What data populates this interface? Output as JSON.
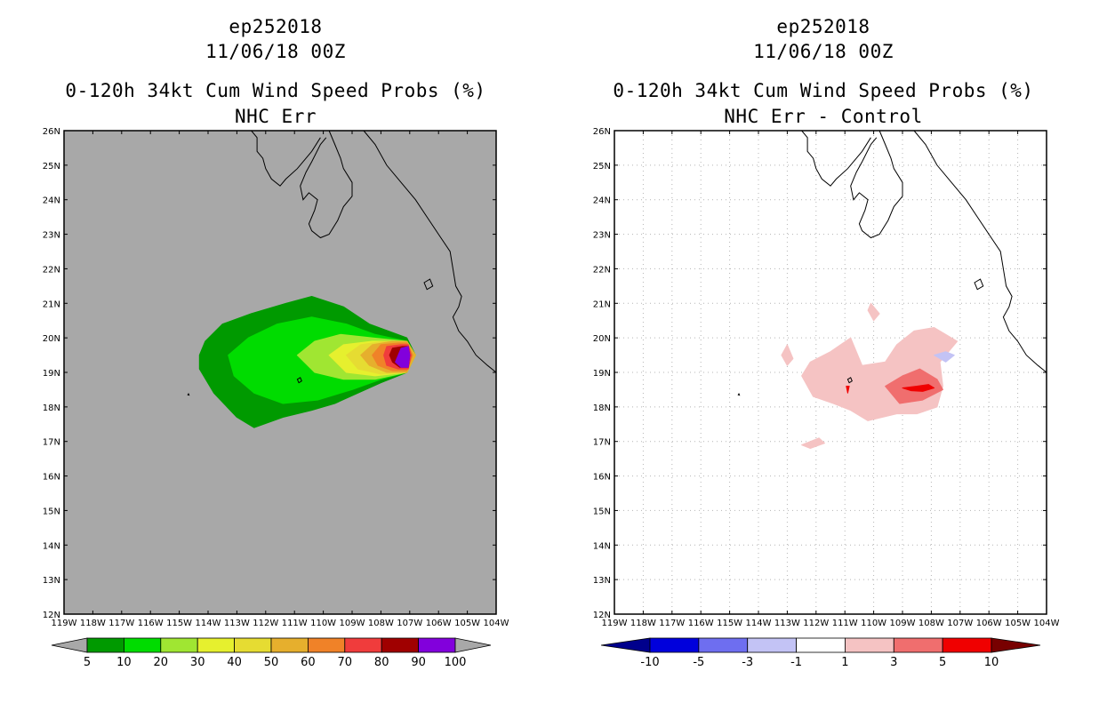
{
  "chart_data": [
    {
      "type": "contour-map",
      "storm_id": "ep252018",
      "date": "11/06/18 00Z",
      "title": "0-120h 34kt Cum Wind Speed Probs (%)",
      "subtitle": "NHC Err",
      "xlim": [
        -119,
        -104
      ],
      "ylim": [
        12,
        26
      ],
      "x_tick_labels": [
        "119W",
        "118W",
        "117W",
        "116W",
        "115W",
        "114W",
        "113W",
        "112W",
        "111W",
        "110W",
        "109W",
        "108W",
        "107W",
        "106W",
        "105W",
        "104W"
      ],
      "y_tick_labels": [
        "12N",
        "13N",
        "14N",
        "15N",
        "16N",
        "17N",
        "18N",
        "19N",
        "20N",
        "21N",
        "22N",
        "23N",
        "24N",
        "25N",
        "26N"
      ],
      "background_color": "#a8a8a8",
      "colorbar": {
        "labels": [
          "5",
          "10",
          "20",
          "30",
          "40",
          "50",
          "60",
          "70",
          "80",
          "90",
          "100"
        ],
        "colors": [
          "#009a00",
          "#00dc00",
          "#a0e632",
          "#e6f02e",
          "#e6dc32",
          "#e6af2d",
          "#f08228",
          "#f03c3c",
          "#a00000",
          "#8200dc"
        ],
        "end_color": "#a8a8a8"
      },
      "contours": [
        {
          "level": 5,
          "color": "#009a00",
          "points": [
            [
              -114.3,
              19.5
            ],
            [
              -114.1,
              19.9
            ],
            [
              -113.5,
              20.4
            ],
            [
              -112.5,
              20.7
            ],
            [
              -111.3,
              21.0
            ],
            [
              -110.4,
              21.2
            ],
            [
              -109.3,
              20.9
            ],
            [
              -108.4,
              20.4
            ],
            [
              -107.1,
              20.0
            ],
            [
              -106.8,
              19.5
            ],
            [
              -107.1,
              19.0
            ],
            [
              -108,
              18.7
            ],
            [
              -108.8,
              18.4
            ],
            [
              -109.6,
              18.1
            ],
            [
              -110.4,
              17.9
            ],
            [
              -111.4,
              17.7
            ],
            [
              -112.4,
              17.4
            ],
            [
              -113,
              17.7
            ],
            [
              -113.8,
              18.4
            ],
            [
              -114.3,
              19.1
            ]
          ]
        },
        {
          "level": 10,
          "color": "#00dc00",
          "points": [
            [
              -113.3,
              19.5
            ],
            [
              -112.6,
              20.0
            ],
            [
              -111.6,
              20.4
            ],
            [
              -110.4,
              20.6
            ],
            [
              -109.2,
              20.4
            ],
            [
              -108.2,
              20.1
            ],
            [
              -107.1,
              19.9
            ],
            [
              -106.8,
              19.5
            ],
            [
              -107.1,
              19.0
            ],
            [
              -108,
              18.8
            ],
            [
              -109,
              18.5
            ],
            [
              -110.2,
              18.2
            ],
            [
              -111.4,
              18.1
            ],
            [
              -112.4,
              18.4
            ],
            [
              -113.1,
              18.9
            ]
          ]
        },
        {
          "level": 20,
          "color": "#a0e632",
          "points": [
            [
              -110.9,
              19.5
            ],
            [
              -110.3,
              19.9
            ],
            [
              -109.4,
              20.1
            ],
            [
              -108.3,
              20.0
            ],
            [
              -107.1,
              19.9
            ],
            [
              -106.8,
              19.5
            ],
            [
              -107.1,
              19.0
            ],
            [
              -108.2,
              18.8
            ],
            [
              -109.3,
              18.8
            ],
            [
              -110.3,
              19.0
            ]
          ]
        },
        {
          "level": 30,
          "color": "#e6f02e",
          "points": [
            [
              -109.8,
              19.5
            ],
            [
              -109.3,
              19.8
            ],
            [
              -108.3,
              19.9
            ],
            [
              -107.1,
              19.9
            ],
            [
              -106.8,
              19.5
            ],
            [
              -107.1,
              19.0
            ],
            [
              -108.2,
              18.9
            ],
            [
              -109.2,
              19.0
            ]
          ]
        },
        {
          "level": 40,
          "color": "#e6dc32",
          "points": [
            [
              -109.2,
              19.5
            ],
            [
              -108.7,
              19.8
            ],
            [
              -107.9,
              19.9
            ],
            [
              -107.1,
              19.9
            ],
            [
              -106.8,
              19.5
            ],
            [
              -107.1,
              19.0
            ],
            [
              -108,
              18.95
            ],
            [
              -108.8,
              19.1
            ]
          ]
        },
        {
          "level": 50,
          "color": "#e6af2d",
          "points": [
            [
              -108.7,
              19.5
            ],
            [
              -108.3,
              19.8
            ],
            [
              -107.6,
              19.9
            ],
            [
              -107.1,
              19.9
            ],
            [
              -106.8,
              19.5
            ],
            [
              -107.1,
              19.0
            ],
            [
              -107.8,
              19.0
            ],
            [
              -108.4,
              19.2
            ]
          ]
        },
        {
          "level": 60,
          "color": "#f08228",
          "points": [
            [
              -108.3,
              19.5
            ],
            [
              -108.0,
              19.8
            ],
            [
              -107.4,
              19.85
            ],
            [
              -107.1,
              19.85
            ],
            [
              -106.9,
              19.5
            ],
            [
              -107.1,
              19.05
            ],
            [
              -107.6,
              19.05
            ],
            [
              -108.1,
              19.2
            ]
          ]
        },
        {
          "level": 70,
          "color": "#f03c3c",
          "points": [
            [
              -107.9,
              19.5
            ],
            [
              -107.8,
              19.75
            ],
            [
              -107.3,
              19.8
            ],
            [
              -107.05,
              19.8
            ],
            [
              -106.95,
              19.5
            ],
            [
              -107.05,
              19.1
            ],
            [
              -107.4,
              19.1
            ],
            [
              -107.8,
              19.2
            ]
          ]
        },
        {
          "level": 80,
          "color": "#a00000",
          "points": [
            [
              -107.7,
              19.5
            ],
            [
              -107.6,
              19.7
            ],
            [
              -107.25,
              19.75
            ],
            [
              -107.05,
              19.75
            ],
            [
              -107.0,
              19.5
            ],
            [
              -107.05,
              19.15
            ],
            [
              -107.35,
              19.15
            ],
            [
              -107.6,
              19.3
            ]
          ]
        },
        {
          "level": 90,
          "color": "#8200dc",
          "points": [
            [
              -107.5,
              19.3
            ],
            [
              -107.3,
              19.7
            ],
            [
              -107.05,
              19.75
            ],
            [
              -107.0,
              19.5
            ],
            [
              -107.05,
              19.15
            ],
            [
              -107.3,
              19.15
            ]
          ]
        }
      ]
    },
    {
      "type": "contour-map",
      "storm_id": "ep252018",
      "date": "11/06/18 00Z",
      "title": "0-120h 34kt Cum Wind Speed Probs (%)",
      "subtitle": "NHC Err - Control",
      "xlim": [
        -119,
        -104
      ],
      "ylim": [
        12,
        26
      ],
      "x_tick_labels": [
        "119W",
        "118W",
        "117W",
        "116W",
        "115W",
        "114W",
        "113W",
        "112W",
        "111W",
        "110W",
        "109W",
        "108W",
        "107W",
        "106W",
        "105W",
        "104W"
      ],
      "y_tick_labels": [
        "12N",
        "13N",
        "14N",
        "15N",
        "16N",
        "17N",
        "18N",
        "19N",
        "20N",
        "21N",
        "22N",
        "23N",
        "24N",
        "25N",
        "26N"
      ],
      "background_color": "#ffffff",
      "grid": true,
      "colorbar": {
        "labels": [
          "-10",
          "-5",
          "-3",
          "-1",
          "1",
          "3",
          "5",
          "10"
        ],
        "colors": [
          "#0000dc",
          "#6e6ef0",
          "#c3c3f5",
          "#ffffff",
          "#f5c3c3",
          "#f06e6e",
          "#f00000"
        ],
        "start_color": "#00008c",
        "end_color": "#780000"
      },
      "contours": [
        {
          "level": 1,
          "color": "#f5c3c3",
          "points": [
            [
              -112.5,
              18.9
            ],
            [
              -112.2,
              19.3
            ],
            [
              -111.5,
              19.6
            ],
            [
              -110.8,
              20.0
            ],
            [
              -110.4,
              19.2
            ],
            [
              -109.6,
              19.3
            ],
            [
              -109.2,
              19.8
            ],
            [
              -108.6,
              20.2
            ],
            [
              -107.9,
              20.3
            ],
            [
              -107.1,
              19.9
            ],
            [
              -107.7,
              19.3
            ],
            [
              -107.6,
              18.6
            ],
            [
              -107.8,
              18.0
            ],
            [
              -108.5,
              17.8
            ],
            [
              -109.2,
              17.8
            ],
            [
              -110.2,
              17.6
            ],
            [
              -110.8,
              17.9
            ],
            [
              -111.4,
              18.1
            ],
            [
              -112.1,
              18.3
            ]
          ]
        },
        {
          "level": 1,
          "color": "#f5c3c3",
          "points": [
            [
              -113.2,
              19.5
            ],
            [
              -113.0,
              19.8
            ],
            [
              -112.8,
              19.4
            ],
            [
              -113.0,
              19.2
            ]
          ]
        },
        {
          "level": 1,
          "color": "#f5c3c3",
          "points": [
            [
              -110.1,
              21.0
            ],
            [
              -109.8,
              20.7
            ],
            [
              -110.0,
              20.5
            ],
            [
              -110.2,
              20.8
            ]
          ]
        },
        {
          "level": 1,
          "color": "#f5c3c3",
          "points": [
            [
              -112.5,
              16.9
            ],
            [
              -111.9,
              17.1
            ],
            [
              -111.7,
              16.95
            ],
            [
              -112.2,
              16.8
            ]
          ]
        },
        {
          "level": 3,
          "color": "#f06e6e",
          "points": [
            [
              -109.6,
              18.6
            ],
            [
              -109.0,
              18.9
            ],
            [
              -108.4,
              19.1
            ],
            [
              -107.8,
              18.8
            ],
            [
              -107.6,
              18.5
            ],
            [
              -108.3,
              18.2
            ],
            [
              -109.1,
              18.1
            ]
          ]
        },
        {
          "level": 5,
          "color": "#f00000",
          "points": [
            [
              -109.0,
              18.55
            ],
            [
              -108.5,
              18.6
            ],
            [
              -108.1,
              18.65
            ],
            [
              -107.9,
              18.55
            ],
            [
              -108.3,
              18.45
            ],
            [
              -108.7,
              18.47
            ]
          ]
        },
        {
          "level": 5,
          "color": "#f00000",
          "points": [
            [
              -110.95,
              18.6
            ],
            [
              -110.9,
              18.4
            ],
            [
              -110.85,
              18.6
            ]
          ]
        },
        {
          "level": -1,
          "color": "#c3c3f5",
          "points": [
            [
              -107.9,
              19.5
            ],
            [
              -107.5,
              19.6
            ],
            [
              -107.2,
              19.5
            ],
            [
              -107.5,
              19.3
            ]
          ]
        }
      ]
    }
  ]
}
